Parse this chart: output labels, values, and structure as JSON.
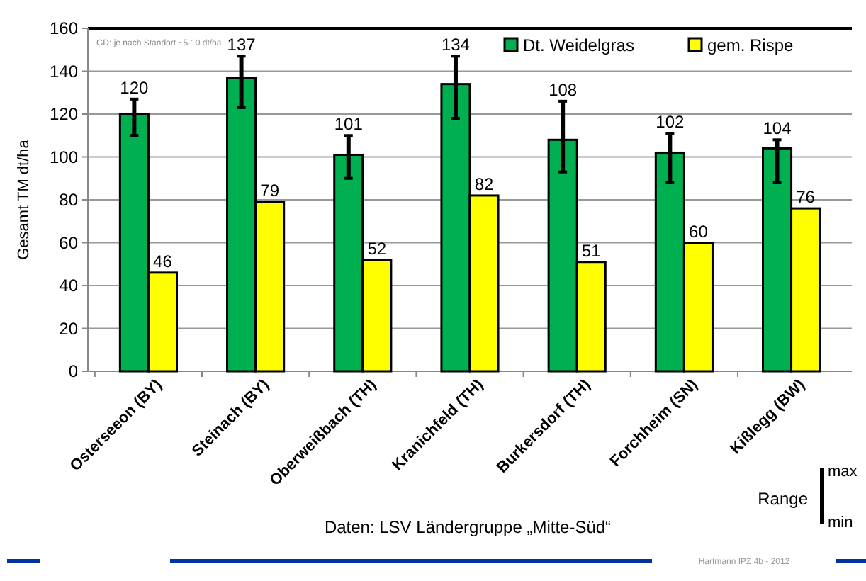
{
  "chart_data": {
    "type": "bar",
    "ylabel": "Gesamt TM dt/ha",
    "categories": [
      "Osterseeon (BY)",
      "Steinach (BY)",
      "Oberweißbach (TH)",
      "Kranichfeld (TH)",
      "Burkersdorf (TH)",
      "Forchheim (SN)",
      "Kißlegg (BW)"
    ],
    "series": [
      {
        "name": "Dt. Weidelgras",
        "color": "#00b050",
        "values": [
          120,
          137,
          101,
          134,
          108,
          102,
          104
        ],
        "errors": [
          [
            110,
            127
          ],
          [
            123,
            147
          ],
          [
            90,
            110
          ],
          [
            118,
            147
          ],
          [
            93,
            126
          ],
          [
            88,
            111
          ],
          [
            88,
            108
          ]
        ]
      },
      {
        "name": "gem. Rispe",
        "color": "#ffff00",
        "values": [
          46,
          79,
          52,
          82,
          51,
          60,
          76
        ]
      }
    ],
    "ylim": [
      0,
      160
    ],
    "yticks": [
      0,
      20,
      40,
      60,
      80,
      100,
      120,
      140,
      160
    ],
    "grid": "y",
    "legend": "top right",
    "data_labels": true,
    "annotations": [
      "GD: je nach Standort ~5-10 dt/ha",
      "Daten: LSV Ländergruppe „Mitte-Süd“",
      "Range",
      "max",
      "min",
      "Hartmann IPZ 4b - 2012"
    ]
  }
}
